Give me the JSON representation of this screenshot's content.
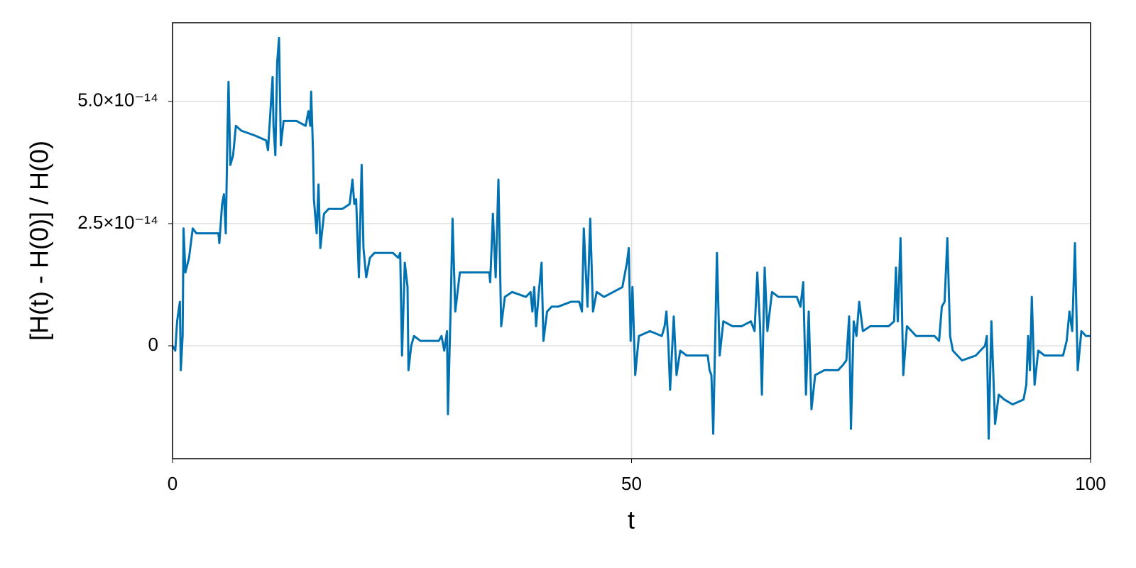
{
  "chart_data": {
    "type": "line",
    "xlabel": "t",
    "ylabel": "[H(t) - H(0)] / H(0)",
    "color": "#0072b2",
    "grid": true,
    "xlim": [
      0,
      100
    ],
    "xticks": [
      0,
      50,
      100
    ],
    "ylim": [
      -2.31e-14,
      6.61e-14
    ],
    "yticks": [
      0,
      {
        "value": 2.5e-14,
        "label": "2.5×10⁻¹⁴"
      },
      {
        "value": 5e-14,
        "label": "5.0×10⁻¹⁴"
      }
    ],
    "x": [
      0,
      0.3,
      0.5,
      0.8,
      0.9,
      1.1,
      1.2,
      1.4,
      1.8,
      2.2,
      2.6,
      5,
      5.1,
      5.4,
      5.6,
      5.8,
      6.0,
      6.1,
      6.3,
      6.6,
      6.9,
      7.5,
      9,
      10.2,
      10.4,
      10.6,
      10.9,
      11.0,
      11.2,
      11.4,
      11.6,
      11.8,
      12.1,
      13.5,
      14.5,
      14.8,
      15,
      15.1,
      15.3,
      15.4,
      15.7,
      15.9,
      16.1,
      16.5,
      17,
      18.5,
      19.3,
      19.6,
      19.8,
      20.0,
      20.3,
      20.6,
      20.8,
      21.1,
      21.5,
      22,
      24,
      24.6,
      24.8,
      25.0,
      25.3,
      25.6,
      25.7,
      26,
      26.3,
      27,
      29,
      29.3,
      29.6,
      29.9,
      30.0,
      30.3,
      30.5,
      30.8,
      31.3,
      32,
      34.5,
      34.6,
      34.8,
      34.9,
      35.2,
      35.5,
      35.8,
      36.2,
      37,
      38.5,
      39,
      39.2,
      39.4,
      39.6,
      39.9,
      40.2,
      40.4,
      40.8,
      41.3,
      42,
      43.4,
      44.3,
      44.6,
      44.8,
      45.2,
      45.5,
      45.8,
      46.2,
      47,
      48,
      49,
      49.5,
      49.7,
      49.9,
      50.1,
      50.4,
      50.8,
      52,
      53.3,
      53.6,
      53.8,
      54,
      54.2,
      54.6,
      54.9,
      55.3,
      56,
      58.3,
      58.5,
      58.7,
      58.9,
      59.3,
      59.6,
      60,
      61,
      62,
      63,
      63.4,
      63.7,
      64,
      64.2,
      64.5,
      64.8,
      65.3,
      66,
      68,
      68.4,
      68.7,
      69,
      69.3,
      69.6,
      70,
      71,
      72.5,
      73,
      73.4,
      73.7,
      73.9,
      74.2,
      74.5,
      74.8,
      75.2,
      76,
      78,
      78.6,
      78.8,
      79,
      79.3,
      79.6,
      80,
      81,
      83,
      83.5,
      83.8,
      84.1,
      84.4,
      84.7,
      85,
      86,
      87.5,
      88.5,
      88.7,
      88.9,
      89.2,
      89.6,
      90,
      90.6,
      91.5,
      92.7,
      93,
      93.2,
      93.4,
      93.6,
      93.9,
      94.3,
      95,
      97,
      97.4,
      97.7,
      98,
      98.3,
      98.6,
      99,
      99.5,
      100
    ],
    "values": [
      0,
      -1e-15,
      5e-15,
      9e-15,
      -5e-15,
      2e-15,
      2.4e-14,
      1.5e-14,
      1.8e-14,
      2.4e-14,
      2.3e-14,
      2.3e-14,
      2.1e-14,
      2.9e-14,
      3.1e-14,
      2.3e-14,
      4.5e-14,
      5.4e-14,
      3.7e-14,
      3.9e-14,
      4.5e-14,
      4.4e-14,
      4.3e-14,
      4.2e-14,
      4e-14,
      4.6e-14,
      5.5e-14,
      4.5e-14,
      3.9e-14,
      5.8e-14,
      6.3e-14,
      4.1e-14,
      4.6e-14,
      4.6e-14,
      4.5e-14,
      4.8e-14,
      4.5e-14,
      5.2e-14,
      4e-14,
      3e-14,
      2.3e-14,
      3.3e-14,
      2e-14,
      2.7e-14,
      2.8e-14,
      2.8e-14,
      2.9e-14,
      3.4e-14,
      2.9e-14,
      3e-14,
      1.4e-14,
      3.7e-14,
      2e-14,
      1.4e-14,
      1.8e-14,
      1.9e-14,
      1.9e-14,
      1.8e-14,
      1.9e-14,
      -2e-15,
      1.7e-14,
      1.2e-14,
      -5e-15,
      0,
      2e-15,
      1e-15,
      1e-15,
      2e-15,
      -1e-15,
      3e-15,
      -1.4e-14,
      8e-15,
      2.6e-14,
      7e-15,
      1.5e-14,
      1.5e-14,
      1.5e-14,
      1.3e-14,
      2.2e-14,
      2.7e-14,
      1.4e-14,
      3.4e-14,
      4e-15,
      1e-14,
      1.1e-14,
      1e-14,
      1.1e-14,
      7e-15,
      1.2e-14,
      4e-15,
      1.1e-14,
      1.7e-14,
      1e-15,
      7e-15,
      8e-15,
      8e-15,
      9e-15,
      9e-15,
      7e-15,
      2.4e-14,
      8e-15,
      2.6e-14,
      7e-15,
      1.1e-14,
      1e-14,
      1.1e-14,
      1.2e-14,
      1.7e-14,
      2e-14,
      1e-15,
      1.2e-14,
      -6e-15,
      2e-15,
      3e-15,
      2e-15,
      4e-15,
      7e-15,
      1e-15,
      -9e-15,
      6e-15,
      -6e-15,
      -1e-15,
      -2e-15,
      -2e-15,
      -5e-15,
      -6e-15,
      -1.8e-14,
      1.9e-14,
      -2e-15,
      5e-15,
      4e-15,
      4e-15,
      5e-15,
      3e-15,
      1.5e-14,
      4e-15,
      -1e-14,
      1.6e-14,
      3e-15,
      1.1e-14,
      1e-14,
      1e-14,
      8e-15,
      1.3e-14,
      -1e-14,
      7e-15,
      -1.3e-14,
      -6e-15,
      -5e-15,
      -5e-15,
      -4e-15,
      -3e-15,
      6e-15,
      -1.7e-14,
      5e-15,
      2e-15,
      9e-15,
      3e-15,
      4e-15,
      4e-15,
      5e-15,
      1.6e-14,
      5e-15,
      2.2e-14,
      -6e-15,
      4e-15,
      2e-15,
      2e-15,
      1e-15,
      8e-15,
      9e-15,
      2.2e-14,
      2e-15,
      -1e-15,
      -3e-15,
      -2e-15,
      0,
      2e-15,
      -1.9e-14,
      5e-15,
      -1.6e-14,
      -1e-14,
      -1.1e-14,
      -1.2e-14,
      -1.1e-14,
      -8e-15,
      2e-15,
      -5e-15,
      1e-14,
      -8e-15,
      -1e-15,
      -2e-15,
      -2e-15,
      1e-15,
      7e-15,
      3e-15,
      2.1e-14,
      -5e-15,
      3e-15,
      2e-15,
      2e-15
    ]
  }
}
